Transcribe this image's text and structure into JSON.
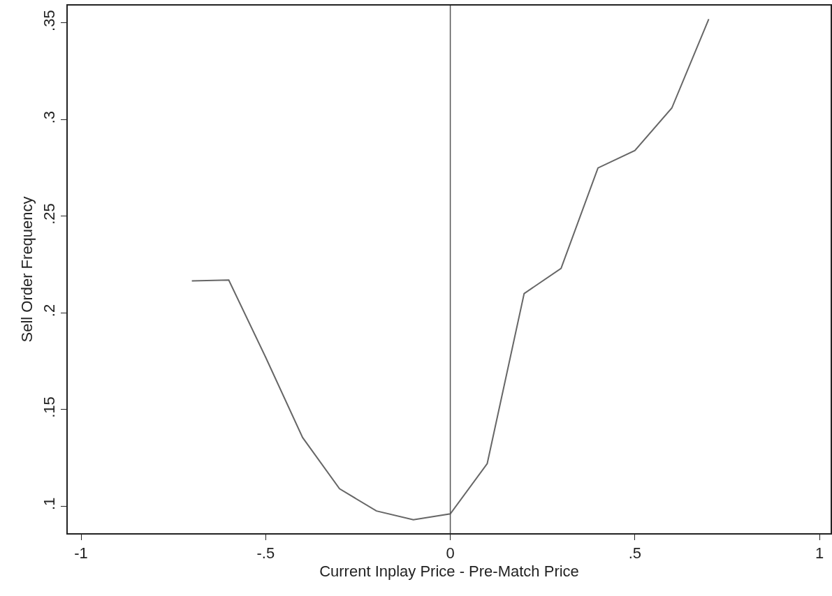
{
  "chart_data": {
    "type": "line",
    "xlabel": "Current Inplay Price - Pre-Match Price",
    "ylabel": "Sell Order Frequency",
    "x": [
      -0.7,
      -0.6,
      -0.5,
      -0.4,
      -0.3,
      -0.2,
      -0.1,
      0,
      0.1,
      0.2,
      0.3,
      0.4,
      0.5,
      0.6,
      0.7
    ],
    "series": [
      {
        "color": "#666666",
        "values": [
          0.2165,
          0.217,
          0.177,
          0.1355,
          0.109,
          0.0975,
          0.093,
          0.096,
          0.122,
          0.21,
          0.223,
          0.275,
          0.284,
          0.306,
          0.352
        ]
      }
    ],
    "xlim": [
      -1.036,
      1.03
    ],
    "xticks": [
      {
        "value": -1,
        "label": "-1"
      },
      {
        "value": -0.5,
        "label": "-.5"
      },
      {
        "value": 0,
        "label": "0"
      },
      {
        "value": 0.5,
        "label": ".5"
      },
      {
        "value": 1,
        "label": "1"
      }
    ],
    "ylim": [
      0.086,
      0.359
    ],
    "yticks": [
      {
        "value": 0.1,
        "label": ".1"
      },
      {
        "value": 0.15,
        "label": ".15"
      },
      {
        "value": 0.2,
        "label": ".2"
      },
      {
        "value": 0.25,
        "label": ".25"
      },
      {
        "value": 0.3,
        "label": ".3"
      },
      {
        "value": 0.35,
        "label": ".35"
      }
    ],
    "ref_lines": [
      {
        "axis": "x",
        "value": 0,
        "color": "#555555"
      }
    ],
    "marker": "none",
    "line_style": "solid"
  }
}
